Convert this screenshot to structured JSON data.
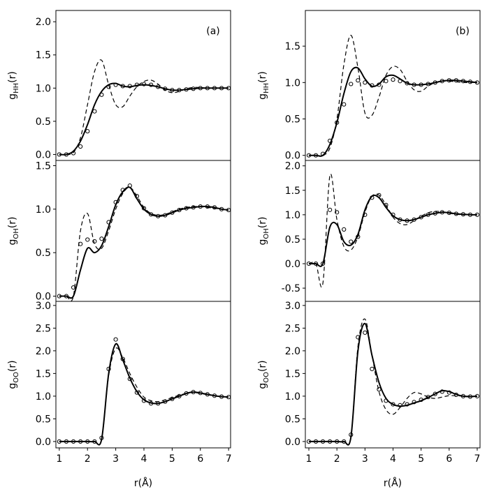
{
  "chart_data": [
    {
      "type": "line",
      "ylabel": [
        "g",
        "HH",
        "(r)"
      ],
      "annotation": "(a)",
      "x": [
        1,
        1.25,
        1.5,
        1.75,
        2,
        2.25,
        2.5,
        2.75,
        3,
        3.25,
        3.5,
        3.75,
        4,
        4.25,
        4.5,
        4.75,
        5,
        5.25,
        5.5,
        5.75,
        6,
        6.25,
        6.5,
        6.75,
        7
      ],
      "xlim": [
        0.88,
        7.07
      ],
      "ylim": [
        -0.09,
        2.17
      ],
      "yticks": [
        {
          "value": 0,
          "label": "0.0"
        },
        0.5,
        {
          "value": 1,
          "label": "1.0"
        },
        1.5,
        {
          "value": 2,
          "label": "2.0"
        }
      ],
      "series": [
        {
          "color": "#000000",
          "style": "solid",
          "values": [
            0,
            0,
            0.05,
            0.2,
            0.45,
            0.75,
            0.95,
            1.05,
            1.07,
            1.03,
            1.02,
            1.04,
            1.05,
            1.04,
            1.02,
            0.99,
            0.97,
            0.97,
            0.98,
            0.99,
            1,
            1,
            1,
            1,
            1
          ]
        },
        {
          "color": "#000000",
          "style": "dashed",
          "values": [
            0,
            0,
            0.03,
            0.25,
            0.75,
            1.25,
            1.42,
            1.05,
            0.75,
            0.72,
            0.88,
            1.02,
            1.1,
            1.12,
            1.06,
            0.97,
            0.93,
            0.95,
            0.99,
            1.01,
            1.01,
            1,
            1,
            1,
            1
          ]
        },
        {
          "color": "#000000",
          "style": "circles",
          "values": [
            0,
            0,
            0.02,
            0.12,
            0.35,
            0.65,
            0.9,
            1.02,
            1.05,
            1.03,
            1.03,
            1.05,
            1.06,
            1.05,
            1.02,
            0.99,
            0.97,
            0.97,
            0.98,
            0.99,
            1,
            1,
            1,
            1,
            1
          ]
        }
      ]
    },
    {
      "type": "line",
      "ylabel": [
        "g",
        "OH",
        "(r)"
      ],
      "x": [
        1,
        1.25,
        1.5,
        1.75,
        2,
        2.25,
        2.5,
        2.75,
        3,
        3.25,
        3.5,
        3.75,
        4,
        4.25,
        4.5,
        4.75,
        5,
        5.25,
        5.5,
        5.75,
        6,
        6.25,
        6.5,
        6.75,
        7
      ],
      "xlim": [
        0.88,
        7.07
      ],
      "ylim": [
        -0.06,
        1.56
      ],
      "yticks": [
        {
          "value": 0,
          "label": "0.0"
        },
        0.5,
        {
          "value": 1,
          "label": "1.0"
        },
        1.5
      ],
      "series": [
        {
          "color": "#000000",
          "style": "solid",
          "values": [
            0,
            0,
            0,
            0.3,
            0.55,
            0.5,
            0.58,
            0.8,
            1.05,
            1.2,
            1.25,
            1.12,
            1,
            0.94,
            0.92,
            0.93,
            0.96,
            0.99,
            1.01,
            1.02,
            1.03,
            1.03,
            1.02,
            1,
            0.99
          ]
        },
        {
          "color": "#000000",
          "style": "dashed",
          "values": [
            0,
            0,
            0,
            0.75,
            0.95,
            0.6,
            0.55,
            0.75,
            1,
            1.18,
            1.25,
            1.15,
            1.02,
            0.95,
            0.93,
            0.94,
            0.97,
            1,
            1.02,
            1.03,
            1.03,
            1.02,
            1.01,
            1,
            0.99
          ]
        },
        {
          "color": "#000000",
          "style": "circles",
          "values": [
            0,
            0,
            0.1,
            0.6,
            0.65,
            0.63,
            0.66,
            0.85,
            1.08,
            1.22,
            1.27,
            1.15,
            1.01,
            0.94,
            0.92,
            0.93,
            0.96,
            0.99,
            1.01,
            1.02,
            1.03,
            1.03,
            1.02,
            1,
            0.99
          ]
        }
      ]
    },
    {
      "type": "line",
      "ylabel": [
        "g",
        "OO",
        "(r)"
      ],
      "xlabel": "r(Å)",
      "x": [
        1,
        1.25,
        1.5,
        1.75,
        2,
        2.25,
        2.5,
        2.75,
        3,
        3.25,
        3.5,
        3.75,
        4,
        4.25,
        4.5,
        4.75,
        5,
        5.25,
        5.5,
        5.75,
        6,
        6.25,
        6.5,
        6.75,
        7
      ],
      "xlim": [
        0.88,
        7.07
      ],
      "ylim": [
        -0.14,
        3.09
      ],
      "xticks": [
        1,
        2,
        3,
        4,
        5,
        6,
        7
      ],
      "yticks": [
        {
          "value": 0,
          "label": "0.0"
        },
        0.5,
        {
          "value": 1,
          "label": "1.0"
        },
        1.5,
        {
          "value": 2,
          "label": "2.0"
        },
        2.5,
        {
          "value": 3,
          "label": "3.0"
        }
      ],
      "series": [
        {
          "color": "#000000",
          "style": "solid",
          "values": [
            0,
            0,
            0,
            0,
            0,
            0,
            0.05,
            1.5,
            2.15,
            1.8,
            1.4,
            1.1,
            0.92,
            0.85,
            0.84,
            0.88,
            0.94,
            1,
            1.06,
            1.09,
            1.07,
            1.04,
            1.01,
            0.99,
            0.98
          ]
        },
        {
          "color": "#000000",
          "style": "dashed",
          "values": [
            0,
            0,
            0,
            0,
            0,
            0,
            0.05,
            1.45,
            2.05,
            1.85,
            1.5,
            1.2,
            0.98,
            0.9,
            0.88,
            0.92,
            0.97,
            1.02,
            1.06,
            1.08,
            1.06,
            1.03,
            1.01,
            0.99,
            0.98
          ]
        },
        {
          "color": "#000000",
          "style": "circles",
          "values": [
            0,
            0,
            0,
            0,
            0,
            0,
            0.08,
            1.6,
            2.25,
            1.82,
            1.38,
            1.08,
            0.9,
            0.84,
            0.84,
            0.88,
            0.94,
            1,
            1.06,
            1.09,
            1.07,
            1.04,
            1.01,
            0.99,
            0.98
          ]
        }
      ]
    },
    {
      "type": "line",
      "ylabel": [
        "g",
        "HH",
        "(r)"
      ],
      "annotation": "(b)",
      "x": [
        1,
        1.25,
        1.5,
        1.75,
        2,
        2.25,
        2.5,
        2.75,
        3,
        3.25,
        3.5,
        3.75,
        4,
        4.25,
        4.5,
        4.75,
        5,
        5.25,
        5.5,
        5.75,
        6,
        6.25,
        6.5,
        6.75,
        7
      ],
      "xlim": [
        0.875,
        7.1
      ],
      "ylim": [
        -0.07,
        1.99
      ],
      "yticks": [
        {
          "value": 0,
          "label": "0.0"
        },
        0.5,
        {
          "value": 1,
          "label": "1.0"
        },
        1.5
      ],
      "series": [
        {
          "color": "#000000",
          "style": "solid",
          "values": [
            0,
            0,
            0,
            0.15,
            0.45,
            0.85,
            1.15,
            1.2,
            1.05,
            0.95,
            0.98,
            1.08,
            1.1,
            1.05,
            0.99,
            0.97,
            0.97,
            0.98,
            1,
            1.02,
            1.03,
            1.03,
            1.02,
            1.01,
            1
          ]
        },
        {
          "color": "#000000",
          "style": "dashed",
          "values": [
            0,
            0,
            0,
            0.1,
            0.5,
            1.25,
            1.65,
            1.2,
            0.58,
            0.55,
            0.8,
            1.1,
            1.22,
            1.18,
            1.02,
            0.9,
            0.88,
            0.95,
            1,
            1.02,
            1.02,
            1.01,
            1,
            1,
            1
          ]
        },
        {
          "color": "#000000",
          "style": "circles",
          "values": [
            0,
            0,
            0.02,
            0.2,
            0.45,
            0.7,
            0.98,
            1.03,
            1,
            0.96,
            0.97,
            1.02,
            1.04,
            1.02,
            0.99,
            0.97,
            0.97,
            0.98,
            1,
            1.02,
            1.03,
            1.03,
            1.02,
            1.01,
            1
          ]
        }
      ]
    },
    {
      "type": "line",
      "ylabel": [
        "g",
        "OH",
        "(r)"
      ],
      "x": [
        1,
        1.25,
        1.5,
        1.75,
        2,
        2.25,
        2.5,
        2.75,
        3,
        3.25,
        3.5,
        3.75,
        4,
        4.25,
        4.5,
        4.75,
        5,
        5.25,
        5.5,
        5.75,
        6,
        6.25,
        6.5,
        6.75,
        7
      ],
      "xlim": [
        0.875,
        7.1
      ],
      "ylim": [
        -0.77,
        2.11
      ],
      "yticks": [
        -0.5,
        {
          "value": 0,
          "label": "0.0"
        },
        0.5,
        {
          "value": 1,
          "label": "1.0"
        },
        1.5,
        {
          "value": 2,
          "label": "2.0"
        }
      ],
      "series": [
        {
          "color": "#000000",
          "style": "solid",
          "values": [
            0,
            0,
            0,
            0.75,
            0.8,
            0.45,
            0.38,
            0.6,
            1.1,
            1.38,
            1.35,
            1.15,
            0.98,
            0.9,
            0.88,
            0.9,
            0.95,
            1,
            1.03,
            1.05,
            1.04,
            1.02,
            1.01,
            1,
            1
          ]
        },
        {
          "color": "#000000",
          "style": "dashed",
          "values": [
            0,
            0,
            -0.4,
            1.8,
            0.9,
            0.35,
            0.28,
            0.55,
            1.05,
            1.38,
            1.4,
            1.2,
            0.95,
            0.82,
            0.8,
            0.88,
            0.97,
            1.04,
            1.07,
            1.06,
            1.03,
            1.01,
            1,
            1,
            1
          ]
        },
        {
          "color": "#000000",
          "style": "circles",
          "values": [
            0,
            0,
            0,
            1.1,
            1.05,
            0.7,
            0.45,
            0.55,
            1,
            1.35,
            1.4,
            1.2,
            1,
            0.9,
            0.88,
            0.9,
            0.95,
            1,
            1.03,
            1.05,
            1.04,
            1.02,
            1.01,
            1,
            1
          ]
        }
      ]
    },
    {
      "type": "line",
      "ylabel": [
        "g",
        "OO",
        "(r)"
      ],
      "xlabel": "r(Å)",
      "x": [
        1,
        1.25,
        1.5,
        1.75,
        2,
        2.25,
        2.5,
        2.75,
        3,
        3.25,
        3.5,
        3.75,
        4,
        4.25,
        4.5,
        4.75,
        5,
        5.25,
        5.5,
        5.75,
        6,
        6.25,
        6.5,
        6.75,
        7
      ],
      "xlim": [
        0.875,
        7.1
      ],
      "ylim": [
        -0.14,
        3.09
      ],
      "xticks": [
        1,
        2,
        3,
        4,
        5,
        6,
        7
      ],
      "yticks": [
        {
          "value": 0,
          "label": "0.0"
        },
        0.5,
        {
          "value": 1,
          "label": "1.0"
        },
        1.5,
        {
          "value": 2,
          "label": "2.0"
        },
        2.5,
        {
          "value": 3,
          "label": "3.0"
        }
      ],
      "series": [
        {
          "color": "#000000",
          "style": "solid",
          "values": [
            0,
            0,
            0,
            0,
            0,
            0,
            0.1,
            2,
            2.6,
            1.9,
            1.3,
            0.95,
            0.82,
            0.78,
            0.8,
            0.85,
            0.9,
            0.97,
            1.05,
            1.12,
            1.1,
            1.04,
            1,
            0.99,
            1
          ]
        },
        {
          "color": "#000000",
          "style": "dashed",
          "values": [
            0,
            0,
            0,
            0,
            0,
            0,
            0.1,
            2.1,
            2.7,
            1.9,
            1.1,
            0.7,
            0.6,
            0.75,
            0.95,
            1.08,
            1.05,
            0.98,
            0.95,
            0.98,
            1.01,
            1.01,
            1,
            1,
            1
          ]
        },
        {
          "color": "#000000",
          "style": "circles",
          "values": [
            0,
            0,
            0,
            0,
            0,
            0,
            0.15,
            2.3,
            2.4,
            1.6,
            1.15,
            0.9,
            0.82,
            0.8,
            0.82,
            0.87,
            0.92,
            0.98,
            1.05,
            1.1,
            1.08,
            1.03,
            1,
            0.99,
            1
          ]
        }
      ]
    }
  ]
}
